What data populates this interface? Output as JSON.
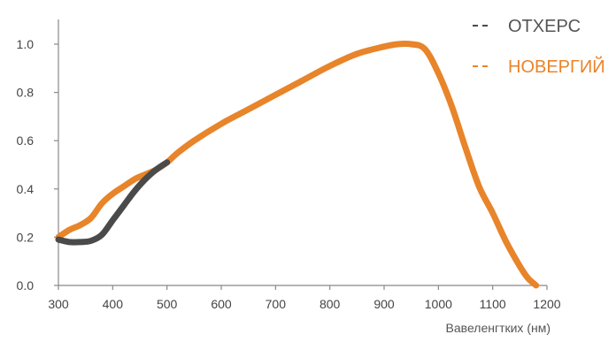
{
  "chart_data": {
    "type": "line",
    "title": "",
    "xlabel": "Вавеленгтких (нм)",
    "ylabel": "",
    "xlim": [
      300,
      1200
    ],
    "ylim": [
      0,
      1.0
    ],
    "x_ticks": [
      "300",
      "400",
      "500",
      "600",
      "700",
      "800",
      "900",
      "1000",
      "1100",
      "1200"
    ],
    "y_ticks": [
      "0.0",
      "0.2",
      "0.4",
      "0.6",
      "0.8",
      "1.0"
    ],
    "grid": false,
    "legend_position": "top-right",
    "series": [
      {
        "name": "ОТХЕРС",
        "color": "#4a4a4a",
        "x": [
          300,
          320,
          340,
          360,
          380,
          400,
          420,
          440,
          460,
          480,
          500
        ],
        "y": [
          0.19,
          0.18,
          0.18,
          0.185,
          0.21,
          0.27,
          0.33,
          0.39,
          0.44,
          0.48,
          0.51
        ]
      },
      {
        "name": "НОВЕРГИЙ",
        "color": "#e8842a",
        "x": [
          300,
          320,
          340,
          360,
          380,
          400,
          420,
          440,
          460,
          480,
          500,
          520,
          550,
          600,
          650,
          700,
          750,
          800,
          850,
          900,
          925,
          950,
          975,
          1000,
          1025,
          1050,
          1075,
          1100,
          1125,
          1150,
          1165,
          1180
        ],
        "y": [
          0.2,
          0.23,
          0.25,
          0.28,
          0.34,
          0.38,
          0.41,
          0.44,
          0.46,
          0.48,
          0.51,
          0.55,
          0.6,
          0.67,
          0.73,
          0.79,
          0.85,
          0.91,
          0.96,
          0.99,
          1.0,
          1.0,
          0.98,
          0.88,
          0.74,
          0.57,
          0.41,
          0.3,
          0.18,
          0.08,
          0.03,
          0.0
        ]
      }
    ]
  }
}
